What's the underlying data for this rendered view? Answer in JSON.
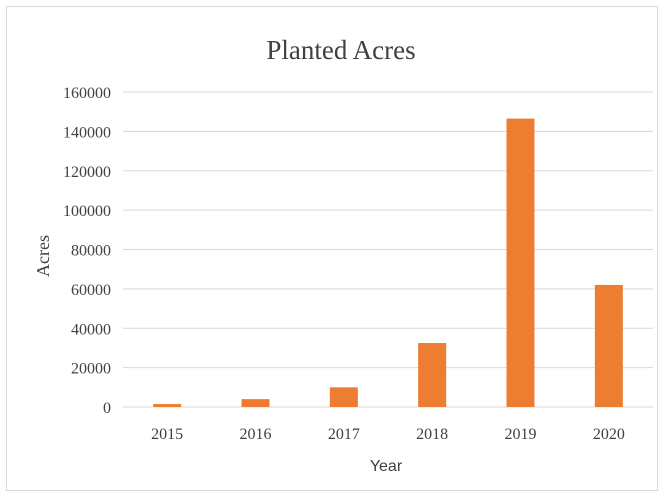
{
  "chart_data": {
    "type": "bar",
    "title": "Planted Acres",
    "xlabel": "Year",
    "ylabel": "Acres",
    "categories": [
      "2015",
      "2016",
      "2017",
      "2018",
      "2019",
      "2020"
    ],
    "values": [
      1500,
      4000,
      10000,
      32500,
      146500,
      62000
    ],
    "ylim": [
      0,
      160000
    ],
    "yticks": [
      "0",
      "20000",
      "40000",
      "60000",
      "80000",
      "100000",
      "120000",
      "140000",
      "160000"
    ],
    "grid": true,
    "legend": "none",
    "bar_color": "#ED7D31",
    "gridline_color": "#d9d9d9"
  }
}
